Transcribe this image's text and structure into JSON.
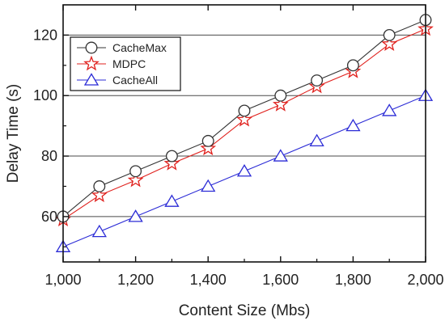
{
  "chart_data": {
    "type": "line",
    "title": "",
    "xlabel": "Content Size (Mbs)",
    "ylabel": "Delay Time (s)",
    "xlim": [
      1000,
      2000
    ],
    "ylim": [
      45,
      130
    ],
    "x": [
      1000,
      1100,
      1200,
      1300,
      1400,
      1500,
      1600,
      1700,
      1800,
      1900,
      2000
    ],
    "x_ticks": [
      {
        "value": 1000,
        "label": "1,000"
      },
      {
        "value": 1200,
        "label": "1,200"
      },
      {
        "value": 1400,
        "label": "1,400"
      },
      {
        "value": 1600,
        "label": "1,600"
      },
      {
        "value": 1800,
        "label": "1,800"
      },
      {
        "value": 2000,
        "label": "2,000"
      }
    ],
    "y_ticks": [
      {
        "value": 60,
        "label": "60"
      },
      {
        "value": 80,
        "label": "80"
      },
      {
        "value": 100,
        "label": "100"
      },
      {
        "value": 120,
        "label": "120"
      }
    ],
    "grid": "horizontal",
    "legend_position": "top-left",
    "series": [
      {
        "name": "CacheMax",
        "marker": "circle",
        "color": "#333333",
        "marker_fill": "#ffffff",
        "values": [
          60,
          70,
          75,
          80,
          85,
          95,
          100,
          105,
          110,
          120,
          125
        ]
      },
      {
        "name": "MDPC",
        "marker": "star",
        "color": "#e0201c",
        "marker_fill": "#ffffff",
        "values": [
          59,
          67,
          72,
          77.5,
          82.5,
          92,
          97,
          103,
          108,
          117,
          122
        ]
      },
      {
        "name": "CacheAll",
        "marker": "triangle",
        "color": "#2b2bd6",
        "marker_fill": "#ffffff",
        "values": [
          50,
          55,
          60,
          65,
          70,
          75,
          80,
          85,
          90,
          95,
          100
        ]
      }
    ]
  }
}
